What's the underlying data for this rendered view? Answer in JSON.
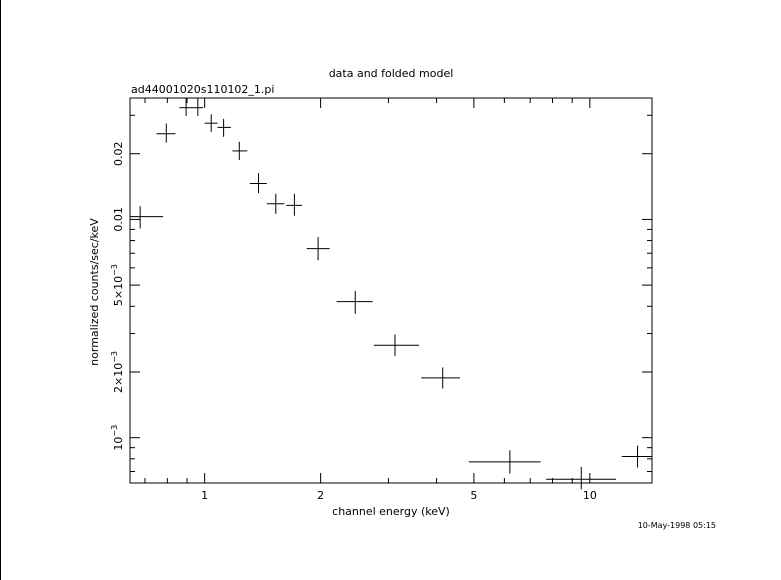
{
  "chart_data": {
    "type": "scatter",
    "title": "data and folded model",
    "subtitle": "ad44001020s110102_1.pi",
    "xlabel": "channel energy (keV)",
    "ylabel": "normalized counts/sec/keV",
    "timestamp": "10-May-1998 05:15",
    "x_scale": "log",
    "y_scale": "log",
    "xlim": [
      0.64,
      14.5
    ],
    "ylim": [
      0.00062,
      0.036
    ],
    "x_ticks": [
      {
        "value": 1,
        "label": "1"
      },
      {
        "value": 2,
        "label": "2"
      },
      {
        "value": 5,
        "label": "5"
      },
      {
        "value": 10,
        "label": "10"
      }
    ],
    "y_ticks": [
      {
        "value": 0.001,
        "base": "10",
        "exp": "−3"
      },
      {
        "value": 0.002,
        "base": "2×10",
        "exp": "−3"
      },
      {
        "value": 0.005,
        "base": "5×10",
        "exp": "−3"
      },
      {
        "value": 0.01,
        "base": "0.01",
        "exp": ""
      },
      {
        "value": 0.02,
        "base": "0.02",
        "exp": ""
      }
    ],
    "points": [
      {
        "x": 0.68,
        "xlo": 0.64,
        "xhi": 0.78,
        "y": 0.0103,
        "ylo": 0.0091,
        "yhi": 0.0115
      },
      {
        "x": 0.795,
        "xlo": 0.75,
        "xhi": 0.84,
        "y": 0.0247,
        "ylo": 0.0225,
        "yhi": 0.0275
      },
      {
        "x": 0.895,
        "xlo": 0.86,
        "xhi": 0.93,
        "y": 0.0325,
        "ylo": 0.0298,
        "yhi": 0.036
      },
      {
        "x": 0.96,
        "xlo": 0.93,
        "xhi": 0.99,
        "y": 0.0325,
        "ylo": 0.0298,
        "yhi": 0.036
      },
      {
        "x": 1.04,
        "xlo": 1.0,
        "xhi": 1.08,
        "y": 0.0276,
        "ylo": 0.0252,
        "yhi": 0.0303
      },
      {
        "x": 1.12,
        "xlo": 1.08,
        "xhi": 1.17,
        "y": 0.0264,
        "ylo": 0.0239,
        "yhi": 0.0289
      },
      {
        "x": 1.23,
        "xlo": 1.18,
        "xhi": 1.29,
        "y": 0.0206,
        "ylo": 0.0187,
        "yhi": 0.0227
      },
      {
        "x": 1.38,
        "xlo": 1.31,
        "xhi": 1.45,
        "y": 0.0146,
        "ylo": 0.0132,
        "yhi": 0.0163
      },
      {
        "x": 1.53,
        "xlo": 1.45,
        "xhi": 1.61,
        "y": 0.0118,
        "ylo": 0.0106,
        "yhi": 0.0131
      },
      {
        "x": 1.71,
        "xlo": 1.63,
        "xhi": 1.79,
        "y": 0.0116,
        "ylo": 0.0104,
        "yhi": 0.0131
      },
      {
        "x": 1.97,
        "xlo": 1.84,
        "xhi": 2.11,
        "y": 0.00735,
        "ylo": 0.0065,
        "yhi": 0.0083
      },
      {
        "x": 2.46,
        "xlo": 2.2,
        "xhi": 2.73,
        "y": 0.0042,
        "ylo": 0.0037,
        "yhi": 0.0047
      },
      {
        "x": 3.12,
        "xlo": 2.75,
        "xhi": 3.6,
        "y": 0.00265,
        "ylo": 0.00237,
        "yhi": 0.00297
      },
      {
        "x": 4.15,
        "xlo": 3.65,
        "xhi": 4.6,
        "y": 0.00188,
        "ylo": 0.00168,
        "yhi": 0.0021
      },
      {
        "x": 6.2,
        "xlo": 4.85,
        "xhi": 7.45,
        "y": 0.000775,
        "ylo": 0.000685,
        "yhi": 0.000875
      },
      {
        "x": 9.5,
        "xlo": 7.7,
        "xhi": 11.7,
        "y": 0.000645,
        "ylo": 0.00058,
        "yhi": 0.000735
      },
      {
        "x": 13.3,
        "xlo": 12.1,
        "xhi": 14.5,
        "y": 0.00082,
        "ylo": 0.00073,
        "yhi": 0.00092
      }
    ]
  }
}
